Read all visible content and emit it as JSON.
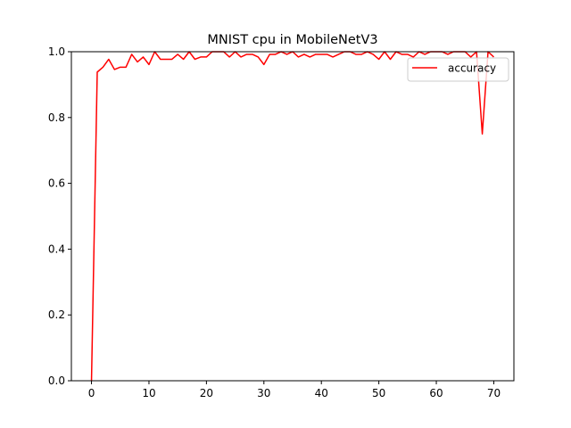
{
  "chart_data": {
    "type": "line",
    "title": "MNIST cpu in MobileNetV3",
    "xlabel": "",
    "ylabel": "",
    "xlim": [
      -3.5,
      73.5
    ],
    "ylim": [
      0.0,
      1.0
    ],
    "x_ticks": [
      0,
      10,
      20,
      30,
      40,
      50,
      60,
      70
    ],
    "y_ticks": [
      0.0,
      0.2,
      0.4,
      0.6,
      0.8,
      1.0
    ],
    "x_tick_labels": [
      "0",
      "10",
      "20",
      "30",
      "40",
      "50",
      "60",
      "70"
    ],
    "y_tick_labels": [
      "0.0",
      "0.2",
      "0.4",
      "0.6",
      "0.8",
      "1.0"
    ],
    "grid": false,
    "legend_position": "top-right",
    "series": [
      {
        "name": "accuracy",
        "color": "#ff0000",
        "x": [
          0,
          1,
          2,
          3,
          4,
          5,
          6,
          7,
          8,
          9,
          10,
          11,
          12,
          13,
          14,
          15,
          16,
          17,
          18,
          19,
          20,
          21,
          22,
          23,
          24,
          25,
          26,
          27,
          28,
          29,
          30,
          31,
          32,
          33,
          34,
          35,
          36,
          37,
          38,
          39,
          40,
          41,
          42,
          43,
          44,
          45,
          46,
          47,
          48,
          49,
          50,
          51,
          52,
          53,
          54,
          55,
          56,
          57,
          58,
          59,
          60,
          61,
          62,
          63,
          64,
          65,
          66,
          67,
          68,
          69,
          70
        ],
        "y": [
          0.0,
          0.938,
          0.953,
          0.977,
          0.946,
          0.953,
          0.953,
          0.992,
          0.969,
          0.984,
          0.961,
          1.0,
          0.977,
          0.977,
          0.977,
          0.992,
          0.977,
          1.0,
          0.977,
          0.984,
          0.984,
          1.0,
          1.0,
          1.0,
          0.984,
          1.0,
          0.984,
          0.992,
          0.992,
          0.984,
          0.961,
          0.992,
          0.992,
          1.0,
          0.992,
          1.0,
          0.984,
          0.992,
          0.984,
          0.992,
          0.992,
          0.992,
          0.984,
          0.992,
          1.0,
          1.0,
          0.992,
          0.992,
          1.0,
          0.992,
          0.977,
          1.0,
          0.977,
          1.0,
          0.992,
          0.992,
          0.984,
          1.0,
          0.992,
          1.0,
          1.0,
          1.0,
          0.992,
          1.0,
          1.0,
          1.0,
          0.984,
          1.0,
          0.75,
          1.0,
          0.984
        ]
      }
    ]
  }
}
